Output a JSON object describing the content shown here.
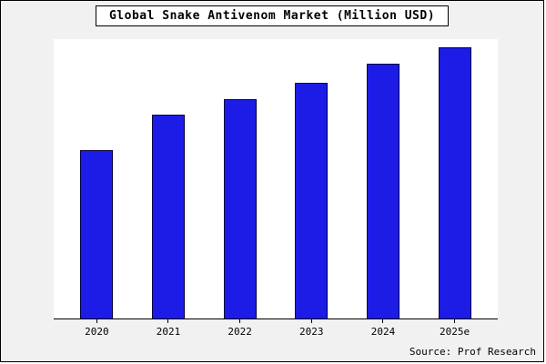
{
  "source": "Source: Prof Research",
  "chart_data": {
    "type": "bar",
    "title": "Global Snake Antivenom Market (Million USD)",
    "categories": [
      "2020",
      "2021",
      "2022",
      "2023",
      "2024",
      "2025e"
    ],
    "values": [
      62,
      75,
      81,
      87,
      94,
      100
    ],
    "xlabel": "",
    "ylabel": "",
    "ylim": [
      0,
      103
    ],
    "grid": false,
    "legend": "none",
    "bar_color": "#1c1ce6",
    "bar_border_color": "#000040"
  }
}
